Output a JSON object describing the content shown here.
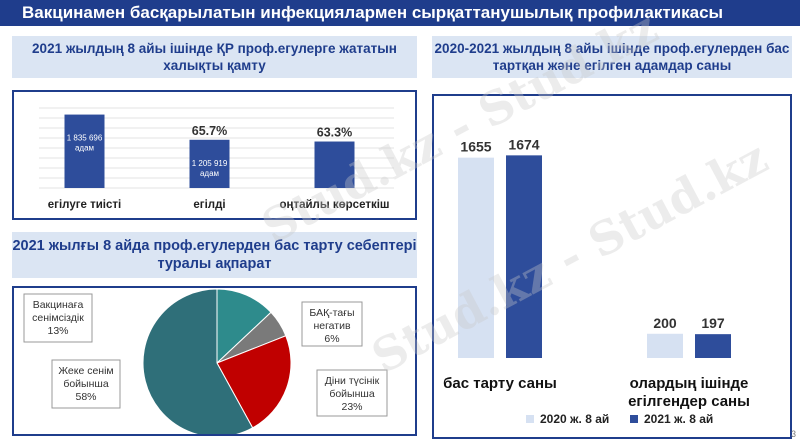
{
  "title": "Вакцинамен басқарылатын инфекциялармен сырқаттанушылық профилактикасы",
  "page_number": "3",
  "watermark": "Stud.kz - Stud.kz",
  "colors": {
    "navy": "#1f3d8c",
    "bar_dark": "#2e4d9b",
    "bar_light": "#d6e1f2",
    "header_bg": "#dbe5f3",
    "teal": "#2e8b8c",
    "slate": "#2f6f79",
    "gray": "#7a7a7a",
    "red": "#c00000"
  },
  "chart_data": [
    {
      "type": "bar",
      "title": "2021 жылдың 8 айы ішінде ҚР проф.егулерге жататын халықты қамту",
      "categories": [
        "егілуге тиісті",
        "егілді",
        "оңтайлы көрсеткіш"
      ],
      "bar_labels": [
        "1 835 696\nадам",
        "1 205 919\nадам",
        ""
      ],
      "top_labels": [
        "",
        "65.7%",
        "63.3%"
      ],
      "values": [
        1835696,
        1205919,
        1162000
      ],
      "ylim": [
        0,
        2000000
      ]
    },
    {
      "type": "pie",
      "title": "2021 жылғы 8 айда проф.егулерден бас тарту себептері туралы ақпарат",
      "slices": [
        {
          "label": "Вакцинаға\nсенімсіздік\n13%",
          "value": 13,
          "color": "#2e8b8c"
        },
        {
          "label": "БАҚ-тағы\nнегатив\n6%",
          "value": 6,
          "color": "#7a7a7a"
        },
        {
          "label": "Діни түсінік\nбойынша\n23%",
          "value": 23,
          "color": "#c00000"
        },
        {
          "label": "Жеке сенім\nбойынша\n58%",
          "value": 58,
          "color": "#2f6f79"
        }
      ]
    },
    {
      "type": "bar",
      "title": "2020-2021 жылдың 8 айы ішінде проф.егулерден бас тартқан және егілген адамдар саны",
      "categories": [
        "бас тарту саны",
        "олардың ішінде\nегілгендер саны"
      ],
      "series": [
        {
          "name": "2020 ж. 8 ай",
          "values": [
            1655,
            200
          ],
          "color": "#d6e1f2"
        },
        {
          "name": "2021 ж. 8 ай",
          "values": [
            1674,
            197
          ],
          "color": "#2e4d9b"
        }
      ],
      "ylim": [
        0,
        1900
      ],
      "legend": "bottom"
    }
  ]
}
